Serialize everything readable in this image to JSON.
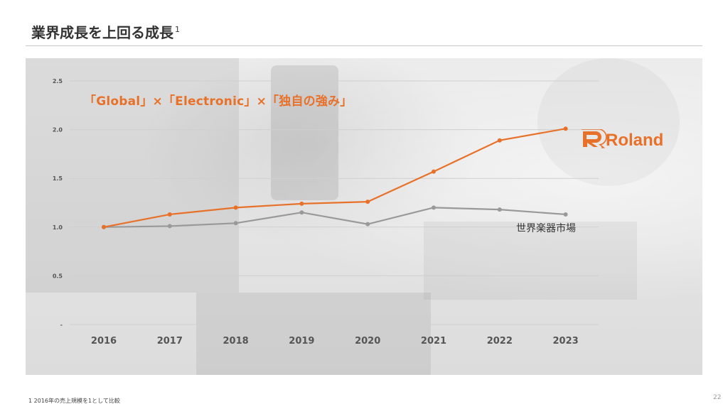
{
  "slide": {
    "title": "業界成長を上回る成長",
    "title_note_marker": "1",
    "tagline": "「Global」×「Electronic」×「独自の強み」",
    "footnote": "1 2016年の売上規模を1として比較",
    "page_number": "22"
  },
  "brand": {
    "logo_text": "Roland",
    "logo_icon": "roland-r-logo-icon",
    "accent_color": "#e8712a"
  },
  "chart_data": {
    "type": "line",
    "x": [
      "2016",
      "2017",
      "2018",
      "2019",
      "2020",
      "2021",
      "2022",
      "2023"
    ],
    "yticks": [
      "-",
      "0.5",
      "1.0",
      "1.5",
      "2.0",
      "2.5"
    ],
    "ylim": [
      0,
      2.5
    ],
    "grid": true,
    "series": [
      {
        "name": "Roland",
        "color": "#e8712a",
        "values": [
          1.0,
          1.13,
          1.2,
          1.24,
          1.26,
          1.57,
          1.89,
          2.01
        ]
      },
      {
        "name": "世界楽器市場",
        "color": "#999999",
        "values": [
          1.0,
          1.01,
          1.04,
          1.15,
          1.03,
          1.2,
          1.18,
          1.13
        ]
      }
    ],
    "series_label": "世界楽器市場"
  }
}
